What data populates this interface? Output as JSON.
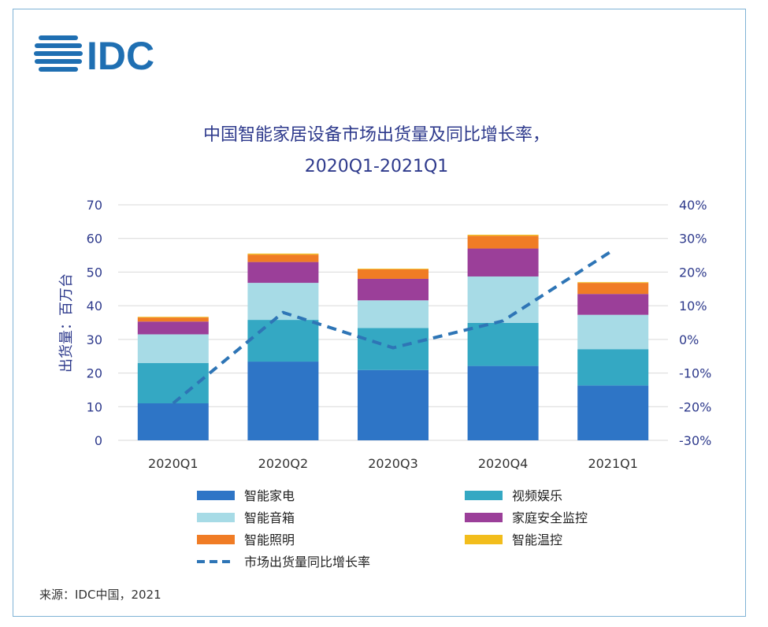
{
  "logo_text": "IDC",
  "source_text": "来源：IDC中国，2021",
  "colors": {
    "axis_text": "#2e3a8c",
    "title": "#2e3a8c",
    "grid": "#d9d9d9",
    "line": "#2e75b6",
    "logo": "#1f6fb2",
    "frame": "#7fb3d5"
  },
  "chart_data": {
    "type": "bar",
    "stacked": true,
    "title": "中国智能家居设备市场出货量及同比增长率，",
    "subtitle": "2020Q1-2021Q1",
    "ylabel": "出货量：百万台",
    "categories": [
      "2020Q1",
      "2020Q2",
      "2020Q3",
      "2020Q4",
      "2021Q1"
    ],
    "ylim": [
      0,
      70
    ],
    "yticks": [
      "0",
      "10",
      "20",
      "30",
      "40",
      "50",
      "60",
      "70"
    ],
    "y2lim": [
      -30,
      40
    ],
    "y2ticks": [
      "-30%",
      "-20%",
      "-10%",
      "0%",
      "10%",
      "20%",
      "30%",
      "40%"
    ],
    "grid": true,
    "legend_position": "bottom",
    "series": [
      {
        "name": "智能家电",
        "color": "#2e75c6",
        "values": [
          11.0,
          23.4,
          20.9,
          22.1,
          16.3
        ]
      },
      {
        "name": "视频娱乐",
        "color": "#34a8c3",
        "values": [
          12.0,
          12.4,
          12.5,
          12.8,
          10.8
        ]
      },
      {
        "name": "智能音箱",
        "color": "#a7dbe6",
        "values": [
          8.5,
          11.0,
          8.2,
          13.8,
          10.2
        ]
      },
      {
        "name": "家庭安全监控",
        "color": "#9b3f99",
        "values": [
          3.8,
          6.2,
          6.4,
          8.3,
          6.2
        ]
      },
      {
        "name": "智能照明",
        "color": "#f07c25",
        "values": [
          1.2,
          2.2,
          2.8,
          3.8,
          3.3
        ]
      },
      {
        "name": "智能温控",
        "color": "#f2bd1c",
        "values": [
          0.2,
          0.3,
          0.2,
          0.3,
          0.2
        ]
      }
    ],
    "line_series": {
      "name": "市场出货量同比增长率",
      "axis": "right",
      "unit": "%",
      "values": [
        -19,
        8,
        -2.5,
        5.5,
        26.5
      ]
    }
  }
}
